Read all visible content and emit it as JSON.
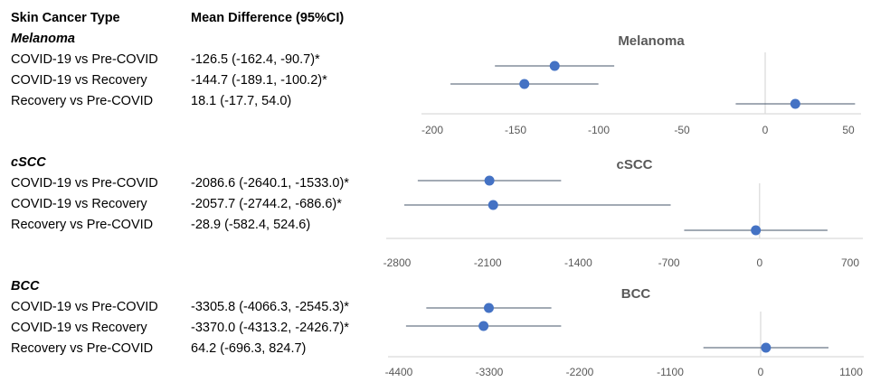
{
  "table": {
    "header_type": "Skin Cancer Type",
    "header_md": "Mean Difference (95%CI)"
  },
  "groups": [
    {
      "title": "Melanoma",
      "rows": [
        {
          "label": "COVID-19 vs Pre-COVID",
          "text": "-126.5 (-162.4, -90.7)*"
        },
        {
          "label": "COVID-19 vs Recovery",
          "text": "-144.7 (-189.1, -100.2)*"
        },
        {
          "label": "Recovery vs Pre-COVID",
          "text": "18.1 (-17.7, 54.0)"
        }
      ]
    },
    {
      "title": "cSCC",
      "rows": [
        {
          "label": "COVID-19 vs Pre-COVID",
          "text": "-2086.6 (-2640.1, -1533.0)*"
        },
        {
          "label": "COVID-19 vs Recovery",
          "text": "-2057.7 (-2744.2, -686.6)*"
        },
        {
          "label": "Recovery vs Pre-COVID",
          "text": "-28.9 (-582.4, 524.6)"
        }
      ]
    },
    {
      "title": "BCC",
      "rows": [
        {
          "label": "COVID-19 vs Pre-COVID",
          "text": "-3305.8 (-4066.3, -2545.3)*"
        },
        {
          "label": "COVID-19 vs Recovery",
          "text": "-3370.0 (-4313.2, -2426.7)*"
        },
        {
          "label": "Recovery vs Pre-COVID",
          "text": "64.2 (-696.3, 824.7)"
        }
      ]
    }
  ],
  "chart_data": [
    {
      "type": "scatter",
      "title": "Melanoma",
      "xlim": [
        -200,
        50
      ],
      "xticks": [
        -200,
        -150,
        -100,
        -50,
        0,
        50
      ],
      "points": [
        {
          "label": "COVID-19 vs Pre-COVID",
          "mean": -126.5,
          "lo": -162.4,
          "hi": -90.7
        },
        {
          "label": "COVID-19 vs Recovery",
          "mean": -144.7,
          "lo": -189.1,
          "hi": -100.2
        },
        {
          "label": "Recovery vs Pre-COVID",
          "mean": 18.1,
          "lo": -17.7,
          "hi": 54.0
        }
      ]
    },
    {
      "type": "scatter",
      "title": "cSCC",
      "xlim": [
        -2800,
        700
      ],
      "xticks": [
        -2800,
        -2100,
        -1400,
        -700,
        0,
        700
      ],
      "points": [
        {
          "label": "COVID-19 vs Pre-COVID",
          "mean": -2086.6,
          "lo": -2640.1,
          "hi": -1533.0
        },
        {
          "label": "COVID-19 vs Recovery",
          "mean": -2057.7,
          "lo": -2744.2,
          "hi": -686.6
        },
        {
          "label": "Recovery vs Pre-COVID",
          "mean": -28.9,
          "lo": -582.4,
          "hi": 524.6
        }
      ]
    },
    {
      "type": "scatter",
      "title": "BCC",
      "xlim": [
        -4400,
        1100
      ],
      "xticks": [
        -4400,
        -3300,
        -2200,
        -1100,
        0,
        1100
      ],
      "points": [
        {
          "label": "COVID-19 vs Pre-COVID",
          "mean": -3305.8,
          "lo": -4066.3,
          "hi": -2545.3
        },
        {
          "label": "COVID-19 vs Recovery",
          "mean": -3370.0,
          "lo": -4313.2,
          "hi": -2426.7
        },
        {
          "label": "Recovery vs Pre-COVID",
          "mean": 64.2,
          "lo": -696.3,
          "hi": 824.7
        }
      ]
    }
  ],
  "colors": {
    "point": "#4472C4",
    "whisker": "#44546A",
    "axis": "#D9D9D9"
  }
}
